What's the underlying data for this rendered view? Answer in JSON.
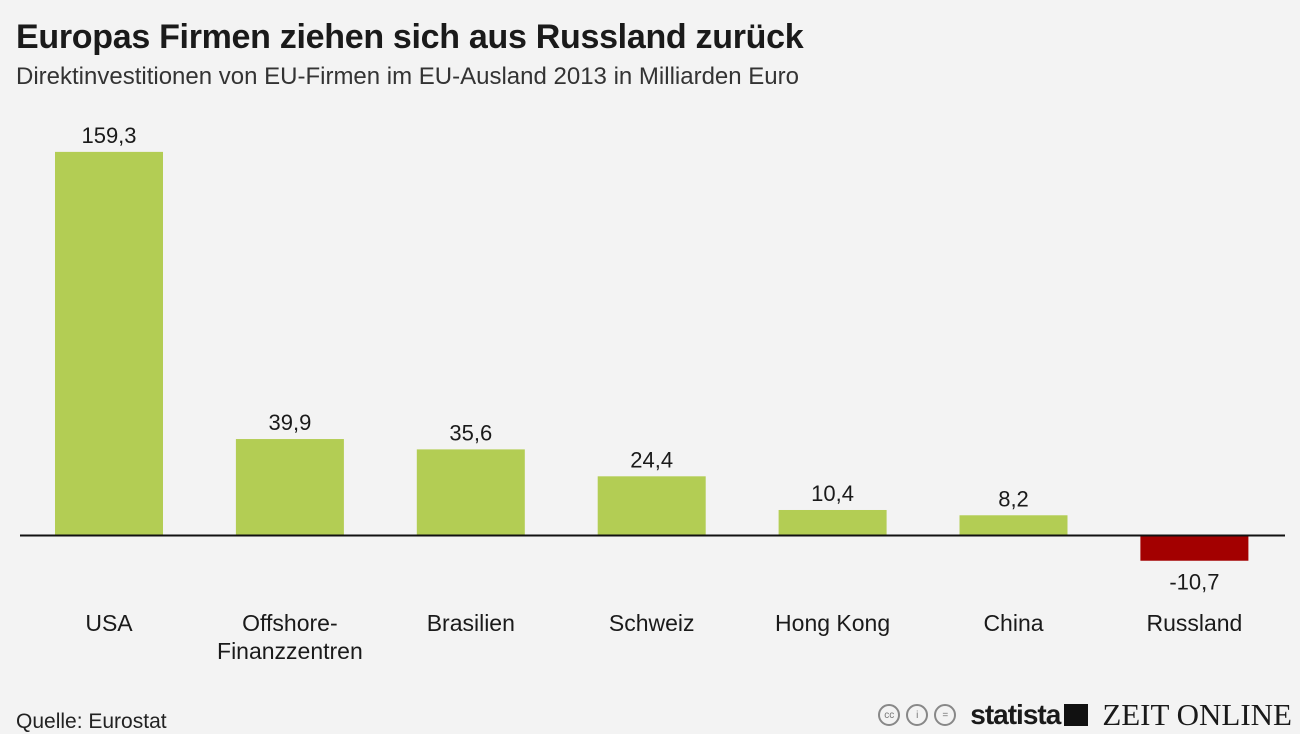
{
  "chart_data": {
    "type": "bar",
    "title": "Europas Firmen ziehen sich aus Russland zurück",
    "subtitle": "Direktinvestitionen von EU-Firmen im EU-Ausland 2013 in Milliarden Euro",
    "categories": [
      "USA",
      "Offshore-\nFinanzzentren",
      "Brasilien",
      "Schweiz",
      "Hong Kong",
      "China",
      "Russland"
    ],
    "values": [
      159.3,
      39.9,
      35.6,
      24.4,
      10.4,
      8.2,
      -10.7
    ],
    "labels": [
      "159,3",
      "39,9",
      "35,6",
      "24,4",
      "10,4",
      "8,2",
      "-10,7"
    ],
    "xlabel": "",
    "ylabel": "",
    "ylim": [
      -10.7,
      159.3
    ],
    "grid": false,
    "colors": {
      "positive": "#b3cd54",
      "negative": "#a30000",
      "axis": "#111111"
    }
  },
  "footer": {
    "source": "Quelle: Eurostat",
    "brand": "statista",
    "partner": "ZEIT ONLINE",
    "license_icons": [
      "cc",
      "by",
      "nd"
    ]
  }
}
